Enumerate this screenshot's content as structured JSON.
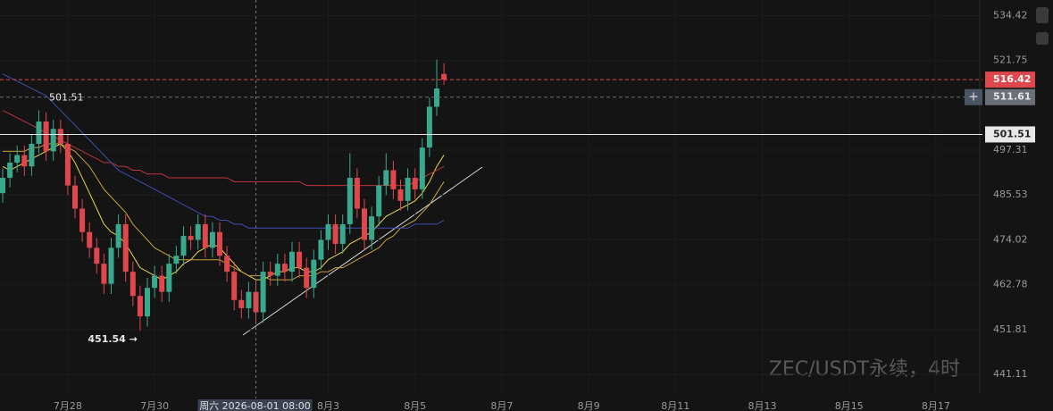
{
  "chart_data": {
    "type": "candlestick",
    "log_scale": true,
    "ylim": [
      436.7,
      538.9
    ],
    "yticks": [
      534.42,
      521.75,
      497.31,
      485.53,
      474.02,
      462.78,
      451.81,
      441.11
    ],
    "xticks": [
      {
        "value": 9,
        "label": "7月28"
      },
      {
        "value": 21,
        "label": "7月30"
      },
      {
        "value": 45,
        "label": "8月3"
      },
      {
        "value": 57,
        "label": "8月5"
      },
      {
        "value": 69,
        "label": "8月7"
      },
      {
        "value": 81,
        "label": "8月9"
      },
      {
        "value": 93,
        "label": "8月11"
      },
      {
        "value": 105,
        "label": "8月13"
      },
      {
        "value": 117,
        "label": "8月15"
      },
      {
        "value": 129,
        "label": "8月17"
      }
    ],
    "crosshair": {
      "value": 35,
      "label": "周六 2026-08-01 08:00"
    },
    "up_color": "#3aa88c",
    "down_color": "#e0474c",
    "open": [
      486,
      490,
      494,
      496,
      493,
      499,
      505,
      497,
      503,
      499,
      488,
      482,
      476,
      472,
      468,
      463,
      472,
      478,
      466,
      460,
      455,
      462,
      465,
      461,
      468,
      470,
      475,
      474,
      478,
      472,
      476,
      470,
      466,
      459,
      457,
      461,
      456,
      466,
      465,
      468,
      466,
      471,
      467,
      462,
      469,
      474,
      478,
      473,
      478,
      490,
      482,
      474,
      480,
      488,
      492,
      487,
      484,
      490,
      487,
      498,
      509,
      518
    ],
    "high": [
      492.5,
      496.5,
      498.5,
      498.5,
      501.5,
      508,
      507.5,
      505.5,
      505.5,
      501.5,
      490.5,
      484.5,
      478.5,
      474.5,
      470.5,
      474.5,
      480.5,
      480.5,
      468.5,
      462.5,
      464.5,
      467.5,
      467.5,
      470.5,
      472.5,
      477.5,
      477.5,
      480.5,
      480.5,
      478.5,
      478.5,
      472.5,
      468.5,
      461.5,
      463.5,
      463.5,
      468.5,
      468.5,
      470.5,
      470.5,
      473.5,
      473.5,
      469.5,
      471.5,
      476.5,
      480.5,
      480.5,
      480.5,
      496.5,
      492.5,
      484.5,
      482.5,
      490.5,
      496.5,
      494.5,
      489.5,
      492.5,
      492.5,
      500.5,
      511.5,
      522,
      521
    ],
    "low": [
      483.5,
      487.5,
      491.5,
      490.5,
      490.5,
      496.5,
      494.5,
      494.5,
      496.5,
      485.5,
      479.5,
      473.5,
      469.5,
      465.5,
      460.5,
      460.5,
      469.5,
      463.5,
      457.5,
      451.54,
      452.5,
      459.5,
      458.5,
      458.5,
      465.5,
      467.5,
      471.5,
      471.5,
      469.5,
      469.5,
      467.5,
      463.5,
      456.5,
      454.5,
      454.5,
      453.5,
      453.5,
      462.5,
      462.5,
      463.5,
      463.5,
      464.5,
      459.5,
      459.5,
      466.5,
      471.5,
      470.5,
      470.5,
      475.5,
      479.5,
      471.5,
      471.5,
      477.5,
      485.5,
      484.5,
      481.5,
      481.5,
      484.5,
      484.5,
      495.5,
      506.5,
      515
    ],
    "close": [
      490,
      494,
      496,
      493,
      499,
      505,
      497,
      503,
      499,
      488,
      482,
      476,
      472,
      468,
      463,
      472,
      478,
      466,
      460,
      455,
      462,
      465,
      461,
      468,
      470,
      475,
      474,
      478,
      472,
      476,
      470,
      466,
      459,
      457,
      461,
      456,
      466,
      465,
      468,
      466,
      471,
      467,
      462,
      469,
      474,
      478,
      473,
      478,
      490,
      482,
      474,
      480,
      488,
      492,
      487,
      484,
      490,
      487,
      498,
      509,
      514,
      516.42
    ],
    "series": [
      {
        "color": "#e8d84a",
        "values": [
          493,
          492,
          493,
          494,
          495,
          496,
          497,
          498,
          499,
          497,
          494,
          490,
          486,
          482,
          478,
          476,
          475,
          473,
          470,
          467,
          466,
          465,
          464,
          465,
          466,
          468,
          469,
          471,
          472,
          473,
          472,
          470,
          468,
          466,
          465,
          464,
          464,
          465,
          466,
          466,
          467,
          467,
          466,
          466,
          467,
          469,
          470,
          471,
          473,
          474,
          475,
          476,
          478,
          480,
          481,
          482,
          483,
          484,
          486,
          489,
          493,
          496
        ]
      },
      {
        "color": "#c9a03a",
        "values": [
          497,
          497,
          497,
          497,
          498,
          498,
          499,
          499,
          499,
          498,
          497,
          495,
          493,
          490,
          487,
          485,
          483,
          481,
          478,
          476,
          474,
          472,
          471,
          470,
          469,
          469,
          469,
          469,
          469,
          469,
          469,
          468,
          467,
          466,
          465,
          465,
          465,
          464,
          464,
          464,
          464,
          465,
          465,
          465,
          466,
          466,
          467,
          467,
          468,
          469,
          470,
          471,
          472,
          474,
          475,
          477,
          478,
          479,
          481,
          483,
          486,
          489
        ]
      },
      {
        "color": "#c0353a",
        "values": [
          508,
          507,
          506,
          505,
          504,
          503,
          502,
          501,
          500,
          499,
          498,
          497,
          496,
          495,
          494,
          494,
          493,
          493,
          492,
          492,
          491,
          491,
          491,
          490,
          490,
          490,
          490,
          490,
          490,
          490,
          490,
          490,
          489,
          489,
          489,
          489,
          489,
          489,
          489,
          489,
          489,
          489,
          488,
          488,
          488,
          488,
          488,
          488,
          488,
          488,
          488,
          488,
          488,
          488,
          488,
          488,
          488,
          489,
          490,
          491,
          492,
          493
        ]
      },
      {
        "color": "#3e4fb5",
        "values": [
          518,
          517,
          516,
          515,
          514,
          513,
          512,
          510,
          508,
          506,
          504,
          502,
          500,
          498,
          496,
          494,
          492,
          491,
          490,
          489,
          488,
          487,
          486,
          485,
          484,
          483,
          482,
          481,
          480,
          480,
          479,
          479,
          478,
          478,
          477,
          477,
          477,
          477,
          477,
          477,
          477,
          477,
          477,
          477,
          477,
          477,
          477,
          477,
          477,
          477,
          477,
          477,
          477,
          477,
          477,
          477,
          477,
          478,
          478,
          478,
          478,
          479
        ]
      }
    ],
    "price_lines": [
      {
        "value": 516.42,
        "color": "#e0474c",
        "dashed": true
      },
      {
        "value": 511.61,
        "color": "#6a6f78",
        "dashed": true
      },
      {
        "value": 501.51,
        "color": "#e8e8e8",
        "dashed": false
      }
    ],
    "annotations": [
      {
        "text": "501.51",
        "index": 5
      },
      {
        "text": "451.54 →",
        "index": 19
      }
    ],
    "watermark": "ZEC/USDT永续，4时"
  }
}
